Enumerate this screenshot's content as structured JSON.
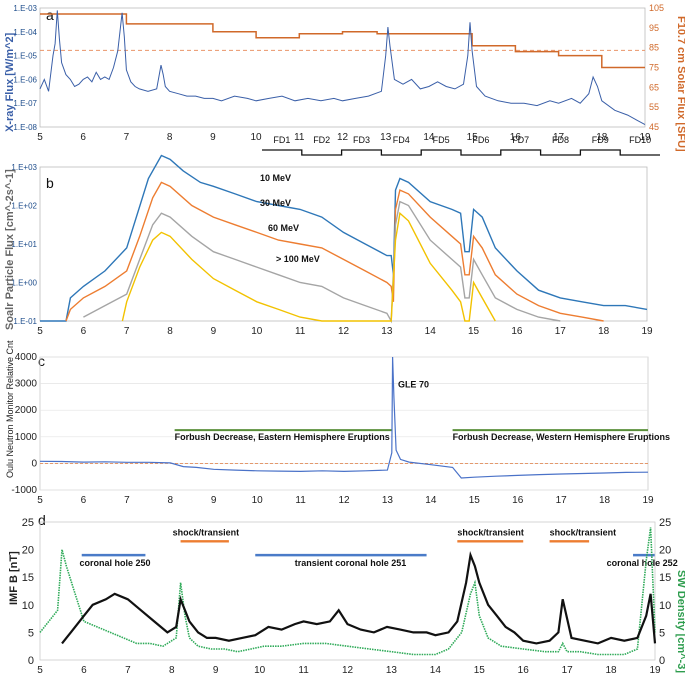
{
  "chart_data": [
    {
      "panel": "a",
      "type": "line",
      "ylabel": "X-ray Flux [W/m^2]",
      "y2label": "F10.7 cm Solar Flux [SFU]",
      "x_ticks": [
        "5",
        "6",
        "7",
        "8",
        "9",
        "10",
        "11",
        "12",
        "13",
        "14",
        "15",
        "16",
        "17",
        "18",
        "19"
      ],
      "xlim": [
        5,
        19
      ],
      "ylim_log": [
        -8,
        -3
      ],
      "y_ticks": [
        "1.E-08",
        "1.E-07",
        "1.E-06",
        "1.E-05",
        "1.E-04",
        "1.E-03"
      ],
      "y2lim": [
        45,
        105
      ],
      "y2_ticks": [
        "45",
        "55",
        "65",
        "75",
        "85",
        "95",
        "105"
      ],
      "xray": {
        "color": "#3a5fa8",
        "x": [
          5.0,
          5.1,
          5.2,
          5.3,
          5.35,
          5.4,
          5.45,
          5.5,
          5.6,
          5.7,
          5.8,
          5.9,
          6.0,
          6.1,
          6.2,
          6.3,
          6.4,
          6.5,
          6.6,
          6.7,
          6.8,
          6.9,
          6.95,
          7.0,
          7.1,
          7.2,
          7.3,
          7.5,
          7.7,
          7.8,
          7.85,
          7.9,
          8.0,
          8.2,
          8.4,
          8.6,
          8.8,
          9.0,
          9.2,
          9.5,
          9.8,
          10.0,
          10.3,
          10.6,
          10.9,
          11.2,
          11.5,
          11.8,
          12.0,
          12.3,
          12.6,
          12.9,
          13.0,
          13.05,
          13.1,
          13.2,
          13.4,
          13.6,
          13.8,
          14.0,
          14.2,
          14.4,
          14.6,
          14.8,
          14.9,
          14.95,
          15.0,
          15.1,
          15.3,
          15.6,
          15.9,
          16.2,
          16.5,
          16.8,
          17.0,
          17.3,
          17.5,
          17.7,
          17.8,
          17.9,
          18.0,
          18.3,
          18.6,
          18.8,
          19.0
        ],
        "log_values": [
          -6.4,
          -6.0,
          -6.5,
          -5.0,
          -4.5,
          -3.1,
          -4.3,
          -5.3,
          -5.8,
          -6.0,
          -6.3,
          -6.2,
          -6.0,
          -5.9,
          -6.1,
          -5.7,
          -6.0,
          -5.9,
          -6.0,
          -5.5,
          -4.8,
          -3.2,
          -4.2,
          -5.6,
          -6.1,
          -6.3,
          -6.4,
          -6.5,
          -6.4,
          -5.4,
          -5.8,
          -6.3,
          -6.5,
          -6.6,
          -6.7,
          -6.7,
          -6.8,
          -6.8,
          -6.9,
          -6.7,
          -6.8,
          -6.9,
          -6.8,
          -6.7,
          -6.9,
          -6.8,
          -6.9,
          -6.8,
          -6.9,
          -6.8,
          -6.7,
          -6.5,
          -5.0,
          -3.8,
          -4.6,
          -6.0,
          -6.2,
          -6.0,
          -6.4,
          -6.3,
          -6.1,
          -6.3,
          -6.4,
          -6.2,
          -5.0,
          -3.6,
          -4.8,
          -6.3,
          -6.7,
          -6.9,
          -7.0,
          -7.0,
          -7.1,
          -6.9,
          -7.0,
          -6.8,
          -7.0,
          -6.6,
          -5.9,
          -6.3,
          -6.9,
          -7.3,
          -7.5,
          -7.7,
          -7.9
        ]
      },
      "f107": {
        "color": "#d0692a",
        "x": [
          5.0,
          7.0,
          7.0,
          9.0,
          9.0,
          10.0,
          10.0,
          11.0,
          11.0,
          12.0,
          12.0,
          12.8,
          12.8,
          15.0,
          15.0,
          16.0,
          16.0,
          17.0,
          17.0,
          18.0,
          18.0,
          19.0
        ],
        "values": [
          102,
          102,
          97,
          97,
          93,
          93,
          90,
          90,
          92,
          92,
          93,
          93,
          92,
          92,
          86,
          86,
          83,
          83,
          81,
          81,
          75,
          75
        ]
      },
      "dashed_level_log": -4.78
    },
    {
      "panel": "b",
      "type": "line",
      "ylabel": "Soalr Particle Flux [cm^-2s^-1]",
      "x_ticks": [
        "5",
        "6",
        "7",
        "8",
        "9",
        "10",
        "11",
        "12",
        "13",
        "14",
        "15",
        "16",
        "17",
        "18",
        "19"
      ],
      "xlim": [
        5,
        19
      ],
      "ylim_log": [
        -1,
        3
      ],
      "y_ticks": [
        "1.E-01",
        "1.E+00",
        "1.E+01",
        "1.E+02",
        "1.E+03"
      ],
      "forbush_periods": [
        "FD1",
        "FD2",
        "FD3",
        "FD4",
        "FD5",
        "FD6",
        "FD7",
        "FD8",
        "FD9",
        "FD10"
      ],
      "series": [
        {
          "name": "10 MeV",
          "color": "#2e77b8",
          "x": [
            5.0,
            5.6,
            5.7,
            6.0,
            6.5,
            7.0,
            7.5,
            7.8,
            8.0,
            8.3,
            8.7,
            9.0,
            9.5,
            10.0,
            10.5,
            11.0,
            11.5,
            12.0,
            12.5,
            13.0,
            13.1,
            13.15,
            13.2,
            13.3,
            13.5,
            14.0,
            14.5,
            14.7,
            14.8,
            14.9,
            15.0,
            15.2,
            15.5,
            16.0,
            16.5,
            17.0,
            17.5,
            18.0,
            18.5,
            19.0
          ],
          "log_values": [
            -1.0,
            -1.0,
            -0.4,
            -0.1,
            0.3,
            0.9,
            2.7,
            3.3,
            3.2,
            2.9,
            2.6,
            2.5,
            2.3,
            2.1,
            2.0,
            1.9,
            1.7,
            1.3,
            1.0,
            0.7,
            0.7,
            0.2,
            2.4,
            2.7,
            2.6,
            2.1,
            1.9,
            1.8,
            0.8,
            0.8,
            1.9,
            1.7,
            0.9,
            0.3,
            -0.2,
            -0.4,
            -0.5,
            -0.6,
            -0.6,
            -0.7
          ]
        },
        {
          "name": "30 MeV",
          "color": "#ed7d31",
          "x": [
            5.6,
            5.7,
            6.0,
            6.5,
            7.0,
            7.3,
            7.6,
            7.8,
            8.0,
            8.5,
            9.0,
            9.5,
            10.0,
            10.5,
            11.0,
            11.5,
            12.0,
            12.5,
            13.0,
            13.1,
            13.15,
            13.2,
            13.3,
            13.5,
            14.0,
            14.5,
            14.7,
            14.8,
            14.9,
            15.0,
            15.2,
            15.5,
            16.0,
            16.5,
            17.0,
            17.5,
            18.0
          ],
          "log_values": [
            -1.0,
            -0.7,
            -0.4,
            -0.1,
            0.3,
            1.2,
            2.2,
            2.6,
            2.5,
            2.0,
            1.7,
            1.5,
            1.3,
            1.1,
            1.0,
            0.9,
            0.6,
            0.3,
            0.0,
            -0.1,
            -0.5,
            1.9,
            2.4,
            2.3,
            1.7,
            1.2,
            1.0,
            0.2,
            0.2,
            1.2,
            0.9,
            0.2,
            -0.3,
            -0.6,
            -0.8,
            -0.9,
            -1.0
          ]
        },
        {
          "name": "60 MeV",
          "color": "#a5a5a5",
          "x": [
            6.0,
            6.5,
            7.0,
            7.3,
            7.6,
            7.8,
            8.0,
            8.5,
            9.0,
            9.5,
            10.0,
            10.5,
            11.0,
            11.5,
            12.0,
            12.5,
            13.0,
            13.1,
            13.2,
            13.3,
            13.5,
            14.0,
            14.5,
            14.7,
            14.8,
            14.9,
            15.0,
            15.2,
            15.5,
            16.0,
            16.5,
            17.0
          ],
          "log_values": [
            -0.9,
            -0.6,
            -0.3,
            0.6,
            1.5,
            1.8,
            1.7,
            1.2,
            0.8,
            0.6,
            0.4,
            0.2,
            0.0,
            -0.1,
            -0.4,
            -0.6,
            -0.8,
            -1.0,
            1.5,
            2.1,
            2.0,
            1.1,
            0.6,
            0.4,
            -0.4,
            -0.4,
            0.6,
            0.2,
            -0.4,
            -0.7,
            -0.9,
            -1.0
          ]
        },
        {
          "name": "> 100 MeV",
          "color": "#f2c200",
          "x": [
            6.9,
            7.0,
            7.3,
            7.6,
            7.8,
            8.0,
            8.5,
            9.0,
            9.5,
            10.0,
            10.5,
            11.0,
            11.5,
            12.0,
            13.0,
            13.1,
            13.2,
            13.3,
            13.5,
            14.0,
            14.5,
            14.7,
            14.8,
            14.9,
            15.0,
            15.2,
            15.5
          ],
          "log_values": [
            -1.0,
            -0.5,
            0.4,
            1.1,
            1.3,
            1.2,
            0.6,
            0.1,
            -0.2,
            -0.5,
            -0.7,
            -0.9,
            -1.0,
            -1.0,
            -1.0,
            -1.0,
            1.1,
            1.8,
            1.6,
            0.5,
            -0.2,
            -0.5,
            -1.0,
            -1.0,
            0.0,
            -0.4,
            -1.0
          ]
        }
      ]
    },
    {
      "panel": "c",
      "type": "line",
      "ylabel": "Oulu Neutron Monitor Relative Cnt",
      "x_ticks": [
        "5",
        "6",
        "7",
        "8",
        "9",
        "10",
        "11",
        "12",
        "13",
        "14",
        "15",
        "16",
        "17",
        "18",
        "19"
      ],
      "xlim": [
        5,
        19
      ],
      "ylim": [
        -1000,
        4000
      ],
      "y_ticks": [
        "-1000",
        "0",
        "1000",
        "2000",
        "3000",
        "4000"
      ],
      "annotations": [
        "GLE 70",
        "Forbush Decrease, Eastern Hemisphere Eruptions",
        "Forbush Decrease, Western Hemisphere Eruptions"
      ],
      "annotation_bars": [
        {
          "x0": 8.1,
          "x1": 13.1,
          "y": 1250
        },
        {
          "x0": 14.5,
          "x1": 19.0,
          "y": 1250
        }
      ],
      "series": [
        {
          "color": "#4a72c8",
          "x": [
            5.0,
            5.5,
            6.0,
            6.5,
            7.0,
            7.5,
            8.0,
            8.3,
            8.6,
            9.0,
            9.5,
            10.0,
            10.5,
            11.0,
            11.5,
            12.0,
            12.5,
            13.0,
            13.1,
            13.12,
            13.15,
            13.2,
            13.3,
            13.5,
            14.0,
            14.5,
            14.7,
            15.0,
            15.5,
            16.0,
            16.5,
            17.0,
            17.5,
            18.0,
            18.5,
            19.0
          ],
          "values": [
            80,
            70,
            50,
            60,
            40,
            40,
            20,
            -120,
            -150,
            -220,
            -250,
            -280,
            -290,
            -300,
            -280,
            -300,
            -280,
            -250,
            400,
            4000,
            2500,
            500,
            150,
            50,
            -50,
            -150,
            -550,
            -520,
            -480,
            -450,
            -420,
            -400,
            -380,
            -360,
            -340,
            -330
          ]
        }
      ]
    },
    {
      "panel": "d",
      "type": "line",
      "ylabel": "IMF B [nT]",
      "y2label": "SW Density [cm^-3]",
      "x_ticks": [
        "5",
        "6",
        "7",
        "8",
        "9",
        "10",
        "11",
        "12",
        "13",
        "14",
        "15",
        "16",
        "17",
        "18",
        "19"
      ],
      "xlim": [
        5,
        19
      ],
      "ylim": [
        0,
        25
      ],
      "y_ticks": [
        "0",
        "5",
        "10",
        "15",
        "20",
        "25"
      ],
      "y2lim": [
        0,
        25
      ],
      "y2_ticks": [
        "0",
        "5",
        "10",
        "15",
        "20",
        "25"
      ],
      "annotations": [
        "coronal hole  250",
        "shock/transient",
        "transient coronal hole  251",
        "shock/transient",
        "shock/transient",
        "coronal hole  252"
      ],
      "annotation_bars": [
        {
          "x0": 5.95,
          "x1": 7.4,
          "y": 19,
          "color": "#4a7bc8"
        },
        {
          "x0": 8.2,
          "x1": 9.3,
          "y": 21.5,
          "color": "#ed7d31"
        },
        {
          "x0": 9.9,
          "x1": 13.8,
          "y": 19,
          "color": "#4a7bc8"
        },
        {
          "x0": 14.5,
          "x1": 16.0,
          "y": 21.5,
          "color": "#ed7d31"
        },
        {
          "x0": 16.6,
          "x1": 17.5,
          "y": 21.5,
          "color": "#ed7d31"
        },
        {
          "x0": 18.5,
          "x1": 19.0,
          "y": 19,
          "color": "#4a7bc8"
        }
      ],
      "series": [
        {
          "name": "IMF B",
          "color": "#111111",
          "x": [
            5.5,
            5.7,
            6.0,
            6.2,
            6.5,
            6.7,
            7.0,
            7.3,
            7.6,
            7.9,
            8.1,
            8.2,
            8.3,
            8.4,
            8.6,
            8.8,
            9.0,
            9.3,
            9.6,
            9.9,
            10.2,
            10.5,
            10.8,
            11.0,
            11.3,
            11.6,
            11.8,
            12.0,
            12.3,
            12.6,
            12.9,
            13.2,
            13.5,
            13.8,
            14.0,
            14.3,
            14.5,
            14.7,
            14.8,
            14.9,
            15.0,
            15.2,
            15.4,
            15.6,
            15.8,
            16.0,
            16.3,
            16.6,
            16.8,
            16.9,
            17.1,
            17.4,
            17.7,
            18.0,
            18.3,
            18.6,
            18.8,
            18.9,
            19.0
          ],
          "values": [
            3,
            5,
            8,
            10,
            11,
            12,
            11,
            9,
            7,
            5,
            6,
            11,
            9,
            7,
            5,
            4,
            4,
            3.5,
            4,
            4.5,
            6,
            5.5,
            6.5,
            7,
            6.5,
            7,
            9,
            6.5,
            5.5,
            5,
            6,
            5.5,
            5,
            5,
            4.5,
            5,
            7,
            14,
            19,
            17,
            14,
            10,
            8,
            6,
            5,
            3.5,
            3,
            3.5,
            5,
            11,
            4,
            3.5,
            3,
            4,
            3.5,
            4,
            8,
            12,
            3
          ]
        },
        {
          "name": "SW Density",
          "color": "#2eaa58",
          "x": [
            5.0,
            5.2,
            5.4,
            5.5,
            5.6,
            5.8,
            6.0,
            6.3,
            6.6,
            6.9,
            7.2,
            7.5,
            7.8,
            8.1,
            8.2,
            8.3,
            8.4,
            8.6,
            8.9,
            9.2,
            9.5,
            9.8,
            10.1,
            10.5,
            11.0,
            11.5,
            12.0,
            12.5,
            13.0,
            13.5,
            14.0,
            14.3,
            14.6,
            14.8,
            14.9,
            15.0,
            15.2,
            15.5,
            16.0,
            16.5,
            16.8,
            16.9,
            17.0,
            17.3,
            17.7,
            18.0,
            18.3,
            18.6,
            18.8,
            18.9,
            19.0
          ],
          "values": [
            5,
            7,
            9,
            20,
            17,
            12,
            7,
            6,
            5,
            4,
            3,
            3,
            2.5,
            4,
            14,
            8,
            4,
            2.5,
            2,
            2,
            1.5,
            2,
            2.5,
            2.5,
            3,
            3,
            2.5,
            2,
            1.5,
            1,
            1,
            2,
            5,
            12,
            14,
            8,
            4,
            2.5,
            2,
            1.5,
            1.5,
            3,
            1.5,
            1.5,
            1,
            1,
            1,
            2,
            18,
            24,
            5
          ]
        }
      ]
    }
  ]
}
